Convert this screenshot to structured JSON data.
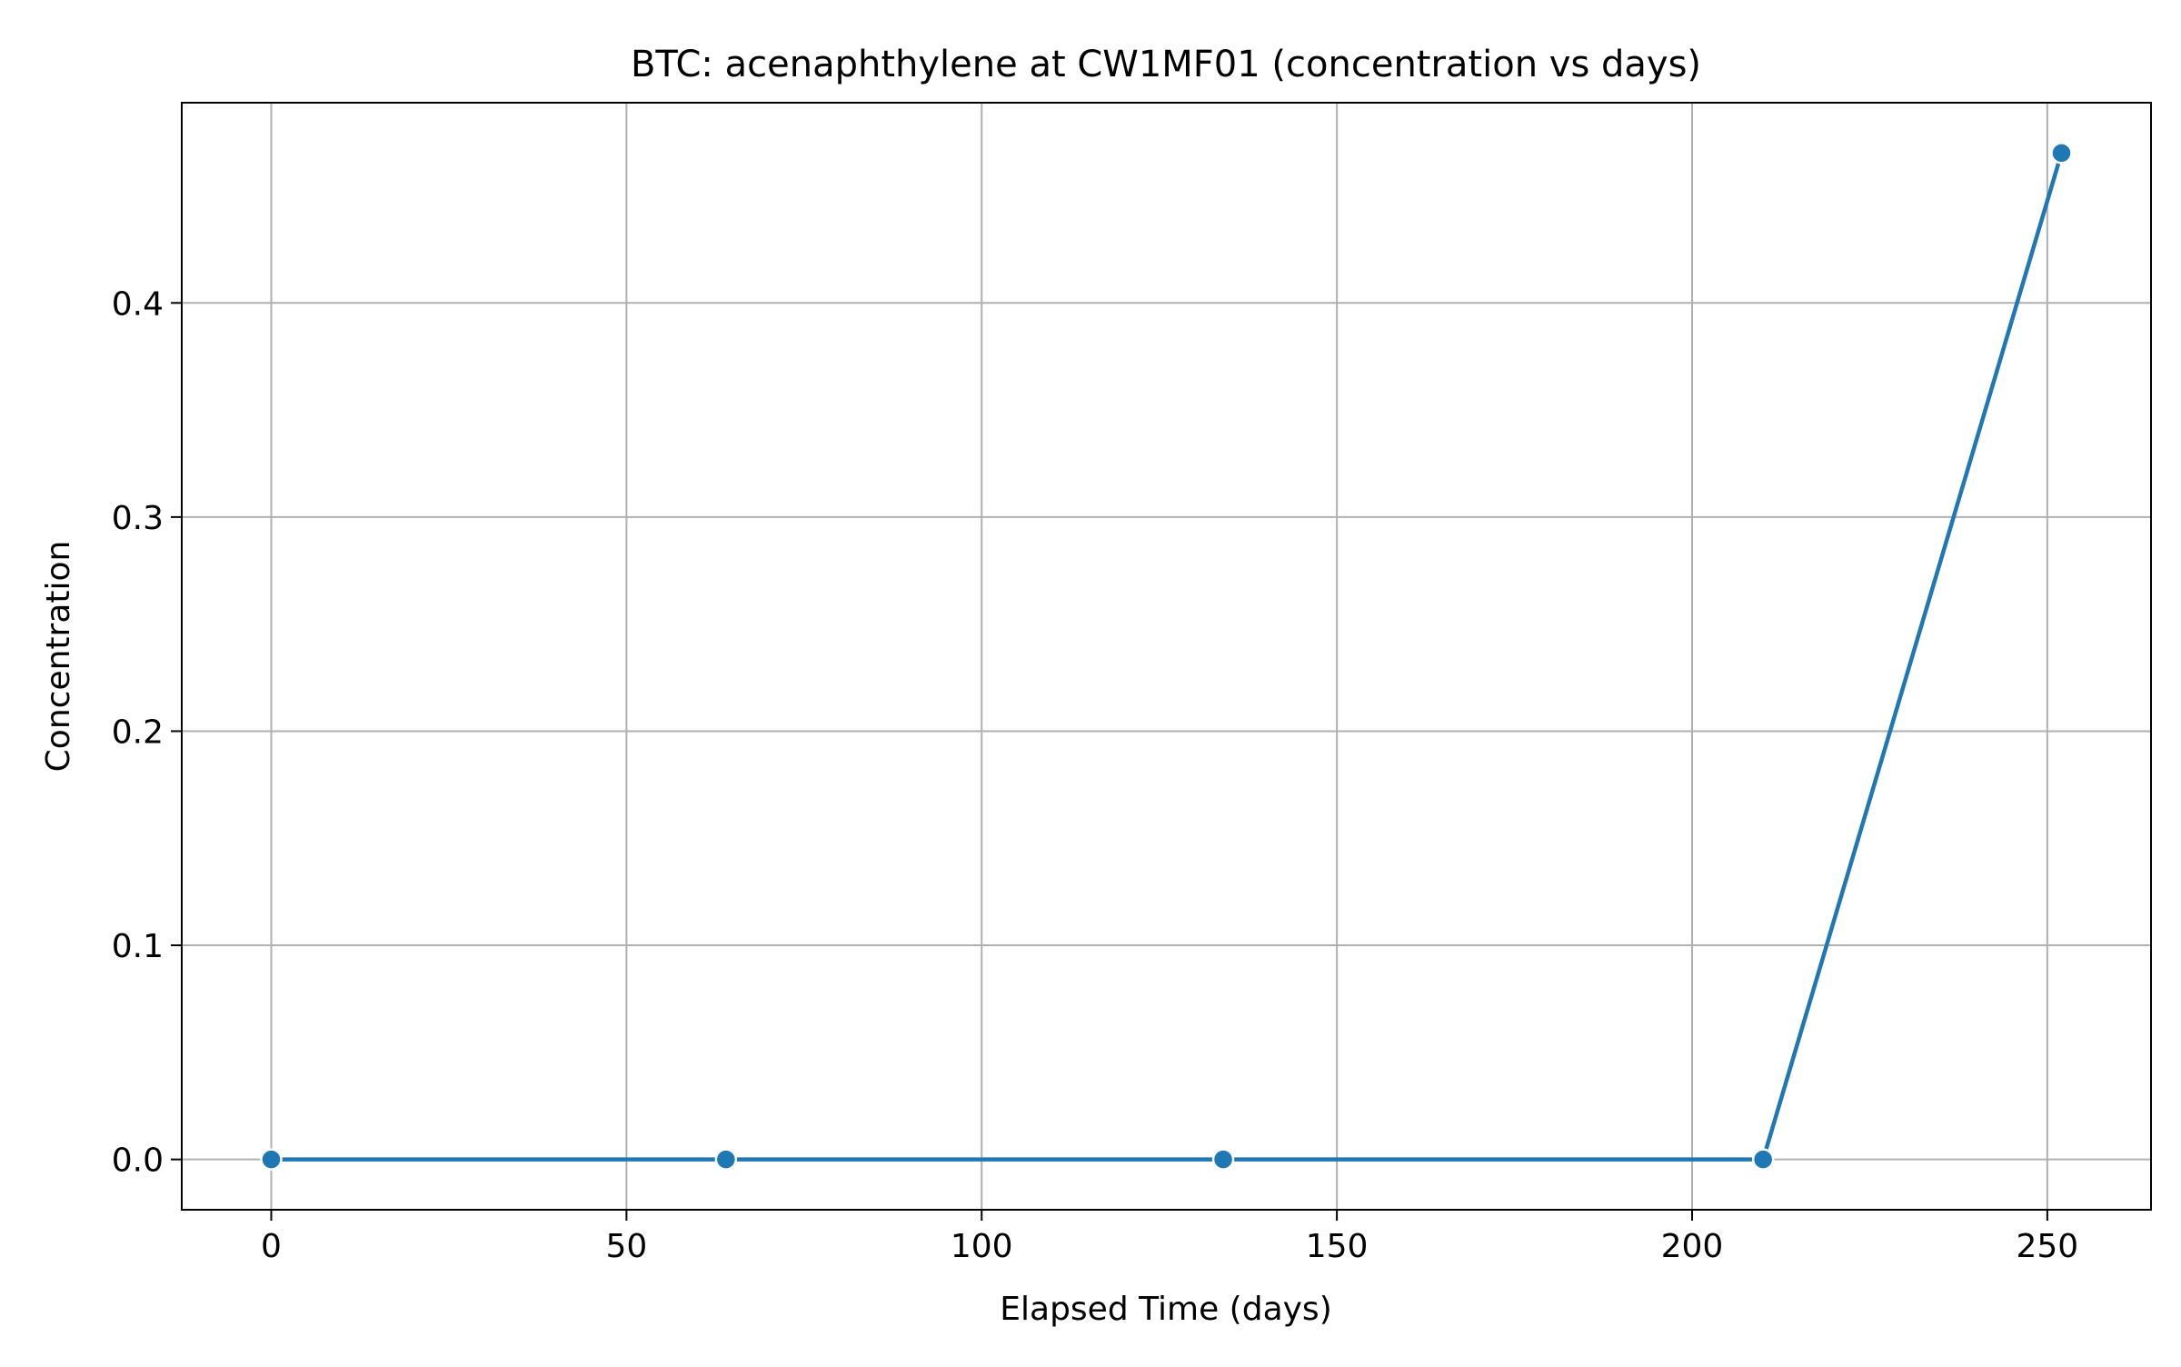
{
  "chart_data": {
    "type": "line",
    "title": "BTC: acenaphthylene at CW1MF01 (concentration vs days)",
    "xlabel": "Elapsed Time (days)",
    "ylabel": "Concentration",
    "xlim": [
      -12.6,
      264.6
    ],
    "ylim": [
      -0.0235,
      0.4935
    ],
    "xticks": [
      0,
      50,
      100,
      150,
      200,
      250
    ],
    "yticks": [
      0.0,
      0.1,
      0.2,
      0.3,
      0.4
    ],
    "xtick_labels": [
      "0",
      "50",
      "100",
      "150",
      "200",
      "250"
    ],
    "ytick_labels": [
      "0.0",
      "0.1",
      "0.2",
      "0.3",
      "0.4"
    ],
    "grid": true,
    "legend": "none",
    "series": [
      {
        "color": "#1f77b4",
        "marker": "circle",
        "x": [
          0,
          64,
          134,
          210,
          252
        ],
        "y": [
          0.0,
          0.0,
          0.0,
          0.0,
          0.47
        ]
      }
    ]
  }
}
